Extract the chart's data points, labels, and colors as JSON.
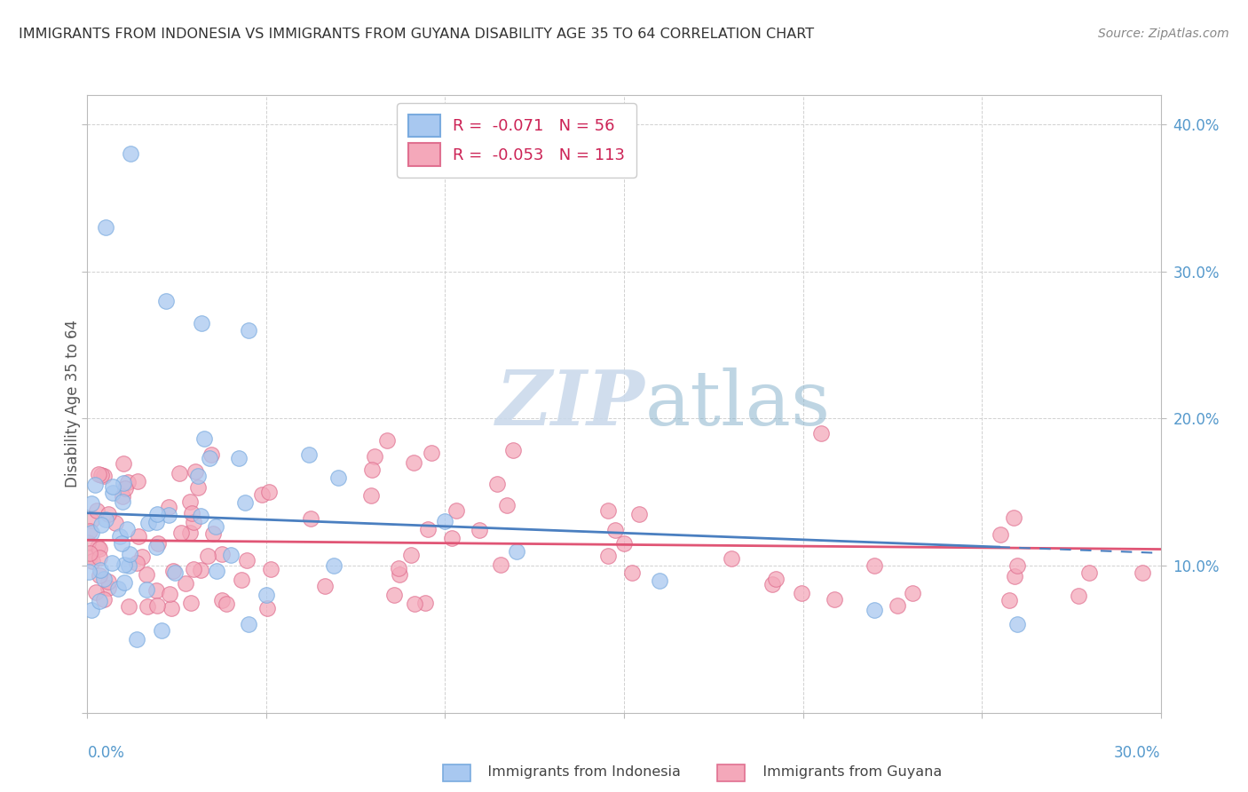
{
  "title": "IMMIGRANTS FROM INDONESIA VS IMMIGRANTS FROM GUYANA DISABILITY AGE 35 TO 64 CORRELATION CHART",
  "source": "Source: ZipAtlas.com",
  "ylabel": "Disability Age 35 to 64",
  "legend_indonesia": "R =  -0.071   N = 56",
  "legend_guyana": "R =  -0.053   N = 113",
  "indonesia_color": "#a8c8f0",
  "indonesia_edge_color": "#7aabdf",
  "guyana_color": "#f4a8ba",
  "guyana_edge_color": "#e07090",
  "indonesia_line_color": "#4a7fc0",
  "guyana_line_color": "#e05575",
  "watermark_color": "#c8d8ea",
  "xmin": 0.0,
  "xmax": 0.3,
  "ymin": 0.0,
  "ymax": 0.42,
  "indonesia_R": -0.071,
  "indonesia_N": 56,
  "guyana_R": -0.053,
  "guyana_N": 113,
  "background_color": "#ffffff",
  "grid_color": "#cccccc",
  "title_fontsize": 11.5,
  "axis_label_color": "#5599cc",
  "legend_text_color": "#222222",
  "legend_value_color": "#cc2255",
  "source_color": "#888888"
}
